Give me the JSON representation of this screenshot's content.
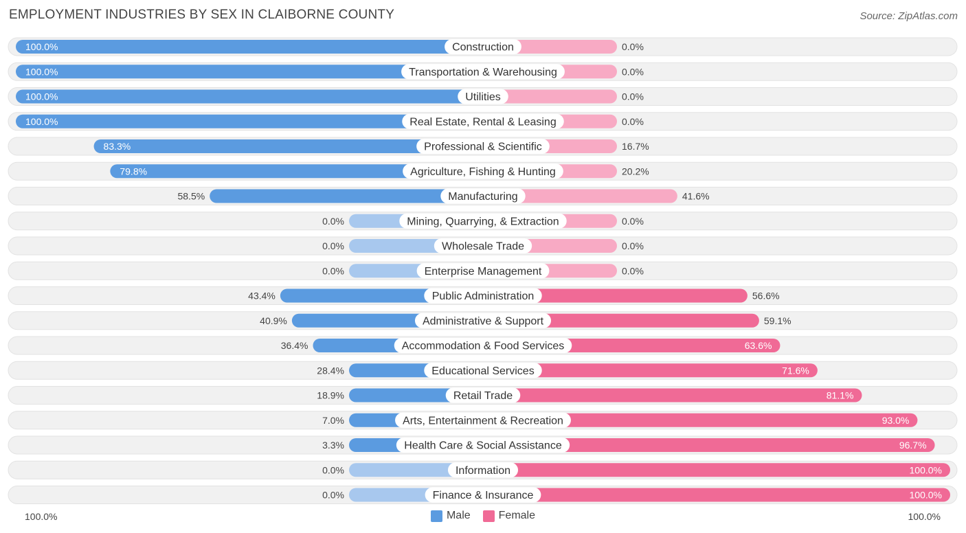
{
  "title": "EMPLOYMENT INDUSTRIES BY SEX IN CLAIBORNE COUNTY",
  "source": "Source: ZipAtlas.com",
  "colors": {
    "male": "#5b9be0",
    "male_light": "#a8c8ee",
    "female": "#f06a96",
    "female_light": "#f8aac4",
    "track": "#f1f1f1"
  },
  "chart_data": {
    "type": "bar",
    "orientation": "horizontal-diverging",
    "title": "EMPLOYMENT INDUSTRIES BY SEX IN CLAIBORNE COUNTY",
    "xlim": [
      0,
      100
    ],
    "axis_left_label": "100.0%",
    "axis_right_label": "100.0%",
    "legend": [
      "Male",
      "Female"
    ],
    "categories": [
      "Construction",
      "Transportation & Warehousing",
      "Utilities",
      "Real Estate, Rental & Leasing",
      "Professional & Scientific",
      "Agriculture, Fishing & Hunting",
      "Manufacturing",
      "Mining, Quarrying, & Extraction",
      "Wholesale Trade",
      "Enterprise Management",
      "Public Administration",
      "Administrative & Support",
      "Accommodation & Food Services",
      "Educational Services",
      "Retail Trade",
      "Arts, Entertainment & Recreation",
      "Health Care & Social Assistance",
      "Information",
      "Finance & Insurance"
    ],
    "series": [
      {
        "name": "Male",
        "values": [
          100.0,
          100.0,
          100.0,
          100.0,
          83.3,
          79.8,
          58.5,
          0.0,
          0.0,
          0.0,
          43.4,
          40.9,
          36.4,
          28.4,
          18.9,
          7.0,
          3.3,
          0.0,
          0.0
        ],
        "labels": [
          "100.0%",
          "100.0%",
          "100.0%",
          "100.0%",
          "83.3%",
          "79.8%",
          "58.5%",
          "0.0%",
          "0.0%",
          "0.0%",
          "43.4%",
          "40.9%",
          "36.4%",
          "28.4%",
          "18.9%",
          "7.0%",
          "3.3%",
          "0.0%",
          "0.0%"
        ]
      },
      {
        "name": "Female",
        "values": [
          0.0,
          0.0,
          0.0,
          0.0,
          16.7,
          20.2,
          41.6,
          0.0,
          0.0,
          0.0,
          56.6,
          59.1,
          63.6,
          71.6,
          81.1,
          93.0,
          96.7,
          100.0,
          100.0
        ],
        "labels": [
          "0.0%",
          "0.0%",
          "0.0%",
          "0.0%",
          "16.7%",
          "20.2%",
          "41.6%",
          "0.0%",
          "0.0%",
          "0.0%",
          "56.6%",
          "59.1%",
          "63.6%",
          "71.6%",
          "81.1%",
          "93.0%",
          "96.7%",
          "100.0%",
          "100.0%"
        ]
      }
    ]
  }
}
